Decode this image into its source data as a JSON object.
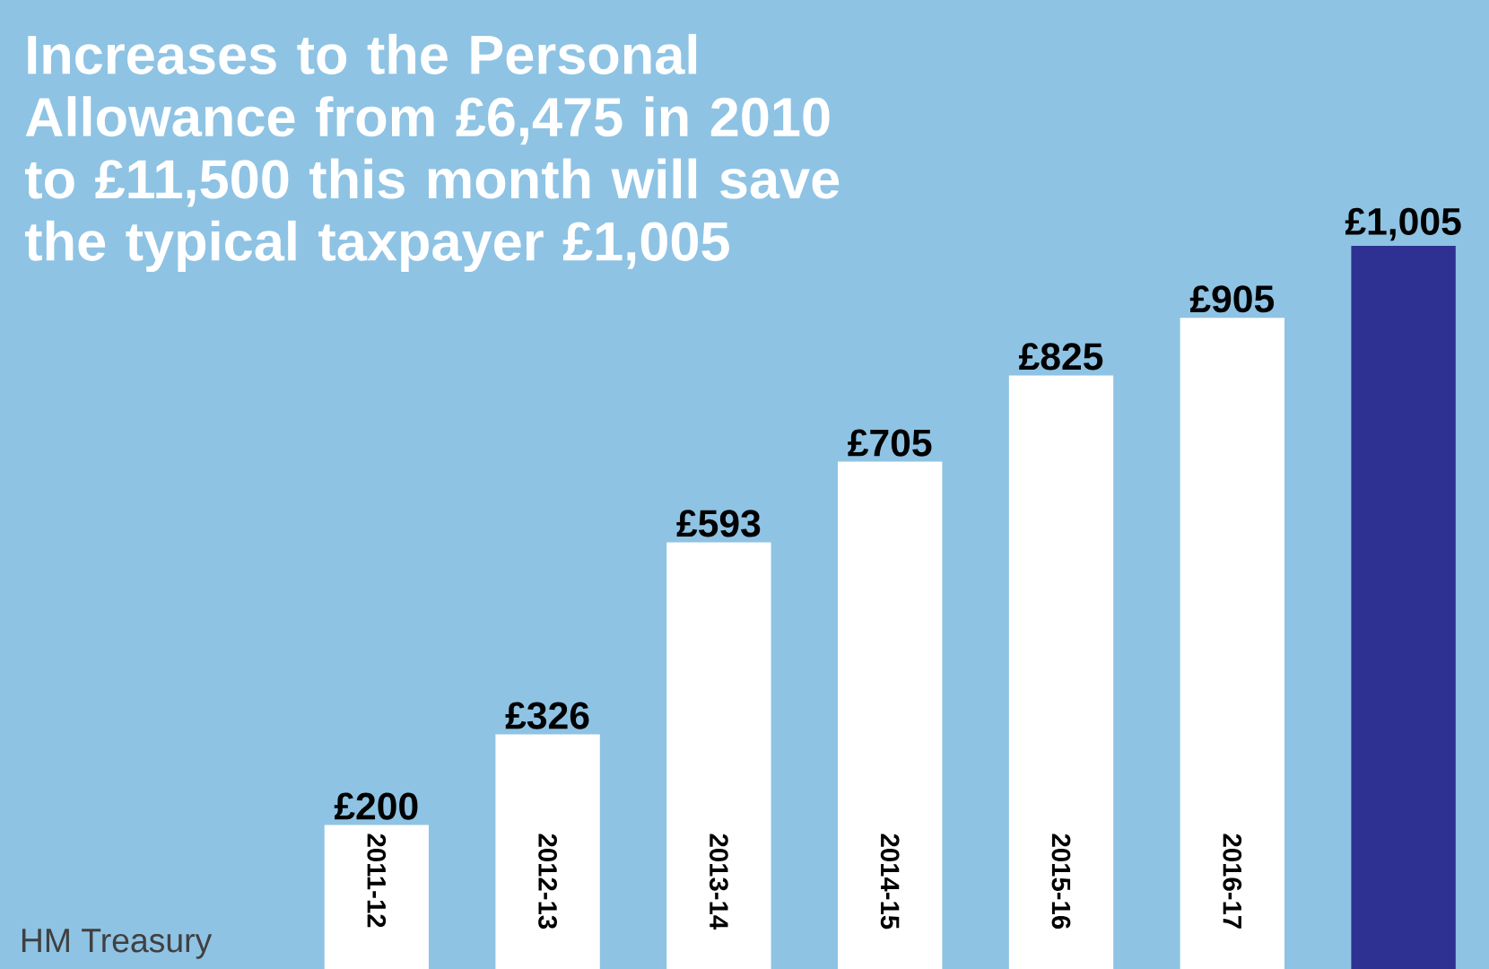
{
  "chart_data": {
    "type": "bar",
    "title": "Increases to the Personal Allowance from £6,475 in 2010 to £11,500 this month will save the typical taxpayer £1,005",
    "categories": [
      "2011-12",
      "2012-13",
      "2013-14",
      "2014-15",
      "2015-16",
      "2016-17",
      null
    ],
    "values": [
      200,
      326,
      593,
      705,
      825,
      905,
      1005
    ],
    "colors": [
      "#ffffff",
      "#ffffff",
      "#ffffff",
      "#ffffff",
      "#ffffff",
      "#ffffff",
      "#2e3192"
    ],
    "value_labels": [
      "£200",
      "£326",
      "£593",
      "£705",
      "£825",
      "£905",
      "£1,005"
    ],
    "annotations": [
      "HM Treasury"
    ]
  }
}
